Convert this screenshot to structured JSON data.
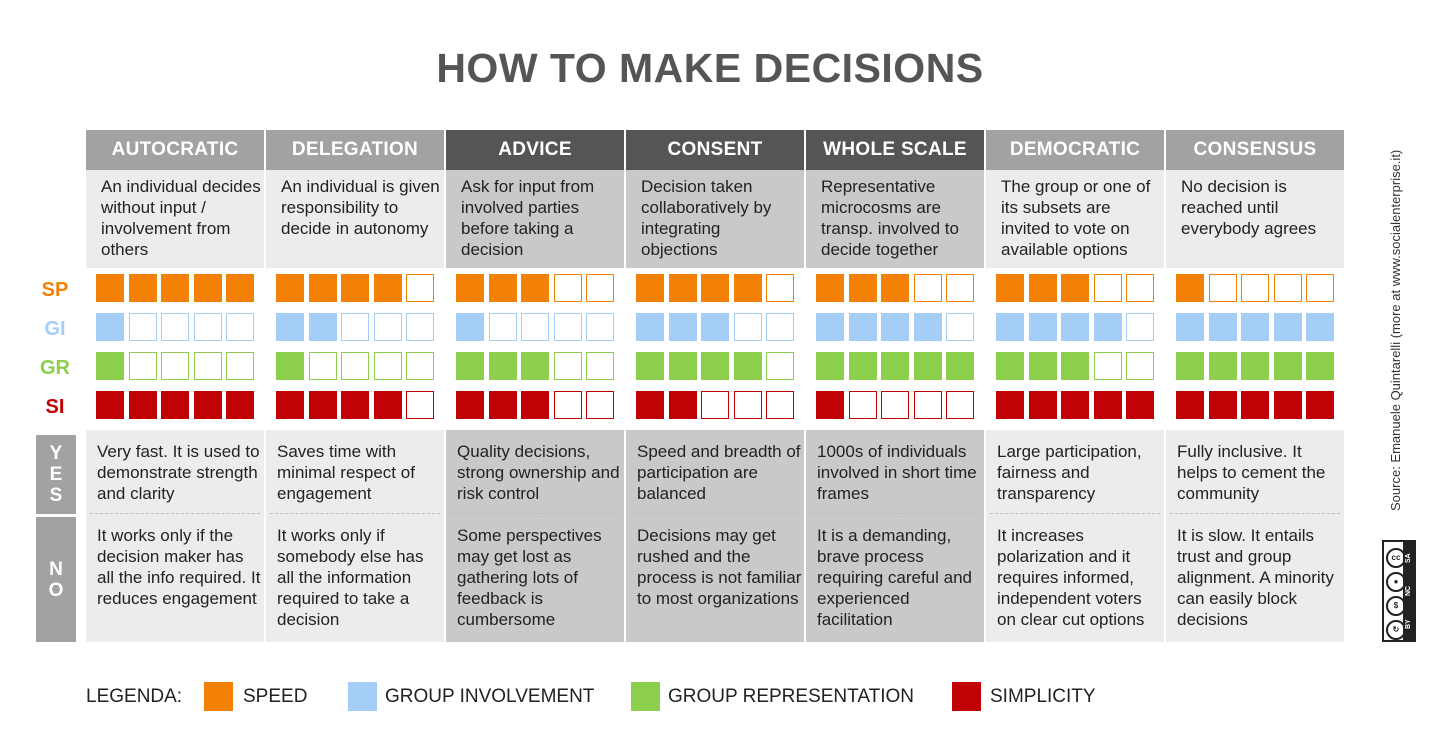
{
  "title": "HOW TO MAKE DECISIONS",
  "colors": {
    "speed": "#f28106",
    "group_involvement": "#a5cef7",
    "group_representation": "#8ccf4c",
    "simplicity": "#c10205",
    "header_light": "#a2a2a2",
    "header_dark": "#555555"
  },
  "row_labels": [
    "SP",
    "GI",
    "GR",
    "SI"
  ],
  "side_labels": {
    "yes": "Y\nE\nS",
    "no": "N\nO"
  },
  "columns": [
    {
      "name": "AUTOCRATIC",
      "shade": "light",
      "description": "An individual decides without input / involvement from others",
      "ratings": {
        "speed": 5,
        "group_involvement": 1,
        "group_representation": 1,
        "simplicity": 5
      },
      "yes": "Very fast. It is used to demonstrate strength and clarity",
      "no": "It works only if the decision maker has all the info required. It reduces engagement"
    },
    {
      "name": "DELEGATION",
      "shade": "light",
      "description": "An individual is given responsibility to decide in autonomy",
      "ratings": {
        "speed": 4,
        "group_involvement": 2,
        "group_representation": 1,
        "simplicity": 4
      },
      "yes": "Saves time with minimal respect of engagement",
      "no": "It works only if somebody else has all the information required to take a decision"
    },
    {
      "name": "ADVICE",
      "shade": "dark",
      "description": "Ask for input from involved parties before taking a decision",
      "ratings": {
        "speed": 3,
        "group_involvement": 1,
        "group_representation": 3,
        "simplicity": 3
      },
      "yes": "Quality decisions, strong ownership and risk control",
      "no": "Some perspectives may get lost as gathering lots of feedback is cumbersome"
    },
    {
      "name": "CONSENT",
      "shade": "dark",
      "description": "Decision taken collaboratively by integrating objections",
      "ratings": {
        "speed": 4,
        "group_involvement": 3,
        "group_representation": 4,
        "simplicity": 2
      },
      "yes": "Speed and breadth of participation are balanced",
      "no": "Decisions may get rushed and the process is not familiar to most organizations"
    },
    {
      "name": "WHOLE SCALE",
      "shade": "dark",
      "description": "Representative microcosms are transp. involved to decide together",
      "ratings": {
        "speed": 3,
        "group_involvement": 4,
        "group_representation": 5,
        "simplicity": 1
      },
      "yes": "1000s of individuals involved in short time frames",
      "no": "It is a demanding, brave process requiring careful and experienced facilitation"
    },
    {
      "name": "DEMOCRATIC",
      "shade": "light",
      "description": "The group or one of its subsets are invited to vote on available options",
      "ratings": {
        "speed": 3,
        "group_involvement": 4,
        "group_representation": 3,
        "simplicity": 5
      },
      "yes": "Large participation, fairness and transparency",
      "no": "It increases polarization and it requires informed, independent voters on clear cut options"
    },
    {
      "name": "CONSENSUS",
      "shade": "light",
      "description": "No decision is reached until everybody agrees",
      "ratings": {
        "speed": 1,
        "group_involvement": 5,
        "group_representation": 5,
        "simplicity": 5
      },
      "yes": "Fully inclusive. It helps to cement the community",
      "no": "It is slow. It entails trust and group alignment. A minority can easily block decisions"
    }
  ],
  "legend": {
    "label": "LEGENDA:",
    "items": [
      {
        "key": "speed",
        "label": "SPEED"
      },
      {
        "key": "group_involvement",
        "label": "GROUP INVOLVEMENT"
      },
      {
        "key": "group_representation",
        "label": "GROUP REPRESENTATION"
      },
      {
        "key": "simplicity",
        "label": "SIMPLICITY"
      }
    ]
  },
  "source": "Source: Emanuele Quintarelli (more at www.socialenterprise.it)",
  "license": {
    "cc": "cc",
    "by": "BY",
    "nc": "NC",
    "sa": "SA"
  }
}
